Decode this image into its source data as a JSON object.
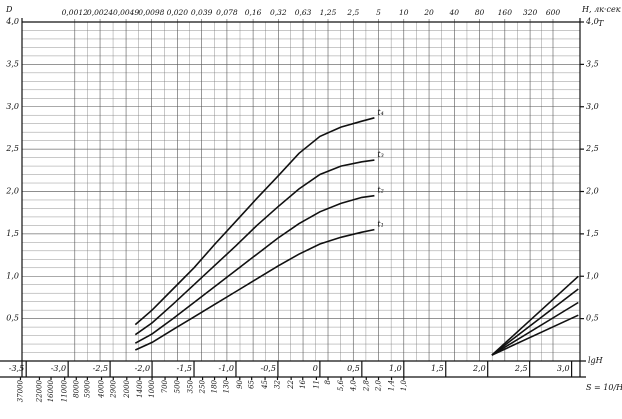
{
  "chart_data": {
    "type": "line",
    "y_label": "D",
    "y2_label": "T",
    "x_label": "lgH",
    "x2_label": "H, лк·сек",
    "x3_label": "S = 10/H",
    "xlim": [
      -3.55,
      3.1
    ],
    "ylim": [
      0,
      4
    ],
    "y2lim": [
      0,
      4
    ],
    "grid": true,
    "xticks": [
      {
        "value": -3.5,
        "label": "-3,5"
      },
      {
        "value": -3,
        "label": "-3,0"
      },
      {
        "value": -2.5,
        "label": "-2,5"
      },
      {
        "value": -2,
        "label": "-2,0"
      },
      {
        "value": -1.5,
        "label": "-1,5"
      },
      {
        "value": -1,
        "label": "-1,0"
      },
      {
        "value": -0.5,
        "label": "-0,5"
      },
      0,
      {
        "value": 0.5,
        "label": "0,5"
      },
      {
        "value": 1,
        "label": "1,0"
      },
      {
        "value": 1.5,
        "label": "1,5"
      },
      {
        "value": 2,
        "label": "2,0"
      },
      {
        "value": 2.5,
        "label": "2,5"
      },
      {
        "value": 3,
        "label": "3,0"
      }
    ],
    "yticks": [
      {
        "value": 0.5,
        "label": "0,5"
      },
      {
        "value": 1,
        "label": "1,0"
      },
      {
        "value": 1.5,
        "label": "1,5"
      },
      {
        "value": 2,
        "label": "2,0"
      },
      {
        "value": 2.5,
        "label": "2,5"
      },
      {
        "value": 3,
        "label": "3,0"
      },
      {
        "value": 3.5,
        "label": "3,5"
      },
      {
        "value": 4,
        "label": "4,0"
      }
    ],
    "y2ticks": [
      {
        "value": 0.5,
        "label": "0,5"
      },
      {
        "value": 1,
        "label": "1,0"
      },
      {
        "value": 1.5,
        "label": "1,5"
      },
      {
        "value": 2,
        "label": "2,0"
      },
      {
        "value": 2.5,
        "label": "2,5"
      },
      {
        "value": 3,
        "label": "3,0"
      },
      {
        "value": 3.5,
        "label": "3,5"
      },
      {
        "value": 4,
        "label": "4,0"
      }
    ],
    "x2ticks": [
      {
        "value": 0.0012,
        "label": "0,0012"
      },
      {
        "value": 0.0024,
        "label": "0,0024"
      },
      {
        "value": 0.0049,
        "label": "0,0049"
      },
      {
        "value": 0.0098,
        "label": "0,0098"
      },
      {
        "value": 0.02,
        "label": "0,020"
      },
      {
        "value": 0.039,
        "label": "0,039"
      },
      {
        "value": 0.078,
        "label": "0,078"
      },
      {
        "value": 0.16,
        "label": "0,16"
      },
      {
        "value": 0.32,
        "label": "0,32"
      },
      {
        "value": 0.63,
        "label": "0,63"
      },
      {
        "value": 1.25,
        "label": "1,25"
      },
      {
        "value": 2.5,
        "label": "2,5"
      },
      5,
      10,
      20,
      40,
      80,
      160,
      320,
      600
    ],
    "x3ticks": [
      37000,
      22000,
      16000,
      11000,
      8000,
      5900,
      4000,
      2900,
      2000,
      1400,
      1000,
      700,
      500,
      350,
      250,
      180,
      130,
      90,
      65,
      45,
      32,
      22,
      16,
      11,
      8,
      {
        "value": 5.6,
        "label": "5,6"
      },
      {
        "value": 4,
        "label": "4,0"
      },
      {
        "value": 2.8,
        "label": "2,8"
      },
      {
        "value": 2,
        "label": "2,0"
      },
      {
        "value": 1.4,
        "label": "1,4"
      },
      {
        "value": 1,
        "label": "1,0"
      }
    ],
    "series": [
      {
        "name": "t₄",
        "color": "#111111",
        "x": [
          -2.2,
          -2.0,
          -1.75,
          -1.5,
          -1.25,
          -1.0,
          -0.75,
          -0.5,
          -0.25,
          0,
          0.25,
          0.5,
          0.65
        ],
        "values": [
          0.43,
          0.6,
          0.85,
          1.1,
          1.38,
          1.65,
          1.92,
          2.18,
          2.45,
          2.65,
          2.76,
          2.83,
          2.87
        ]
      },
      {
        "name": "t₃",
        "color": "#111111",
        "x": [
          -2.2,
          -2.0,
          -1.75,
          -1.5,
          -1.25,
          -1.0,
          -0.75,
          -0.5,
          -0.25,
          0,
          0.25,
          0.5,
          0.65
        ],
        "values": [
          0.31,
          0.45,
          0.67,
          0.9,
          1.13,
          1.36,
          1.6,
          1.82,
          2.03,
          2.2,
          2.3,
          2.35,
          2.37
        ]
      },
      {
        "name": "t₂",
        "color": "#111111",
        "x": [
          -2.2,
          -2.0,
          -1.75,
          -1.5,
          -1.25,
          -1.0,
          -0.75,
          -0.5,
          -0.25,
          0,
          0.25,
          0.5,
          0.65
        ],
        "values": [
          0.21,
          0.32,
          0.5,
          0.69,
          0.88,
          1.07,
          1.26,
          1.45,
          1.62,
          1.76,
          1.86,
          1.93,
          1.95
        ]
      },
      {
        "name": "t₁",
        "color": "#111111",
        "x": [
          -2.2,
          -2.0,
          -1.75,
          -1.5,
          -1.25,
          -1.0,
          -0.75,
          -0.5,
          -0.25,
          0,
          0.25,
          0.5,
          0.65
        ],
        "values": [
          0.13,
          0.22,
          0.37,
          0.52,
          0.67,
          0.82,
          0.97,
          1.12,
          1.26,
          1.38,
          1.46,
          1.52,
          1.55
        ]
      },
      {
        "color": "#111111",
        "axis": "y2",
        "x": [
          2.05,
          3.08
        ],
        "values": [
          0.07,
          1.0
        ]
      },
      {
        "color": "#111111",
        "axis": "y2",
        "x": [
          2.05,
          3.08
        ],
        "values": [
          0.07,
          0.85
        ]
      },
      {
        "color": "#111111",
        "axis": "y2",
        "x": [
          2.05,
          3.08
        ],
        "values": [
          0.07,
          0.69
        ]
      },
      {
        "color": "#111111",
        "axis": "y2",
        "x": [
          2.05,
          3.08
        ],
        "values": [
          0.07,
          0.54
        ]
      }
    ]
  }
}
